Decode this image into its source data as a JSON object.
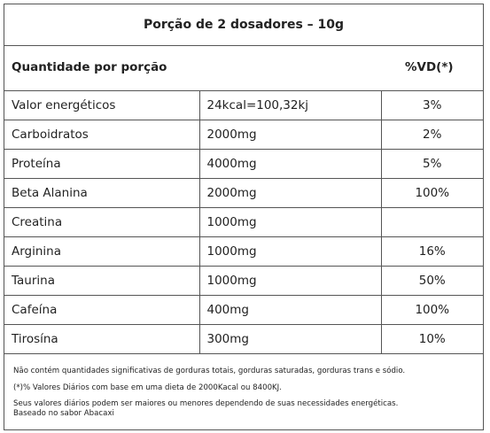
{
  "title": "Porção de 2 dosadores – 10g",
  "header": {
    "label": "Quantidade por porção",
    "vd": "%VD(*)"
  },
  "table": {
    "rows": [
      [
        "Valor energéticos",
        "24kcal=100,32kj",
        "3%"
      ],
      [
        "Carboidratos",
        "2000mg",
        "2%"
      ],
      [
        "Proteína",
        "4000mg",
        "5%"
      ],
      [
        "Beta Alanina",
        "2000mg",
        "100%"
      ],
      [
        "Creatina",
        "1000mg",
        null
      ],
      [
        "Arginina",
        "1000mg",
        "16%"
      ],
      [
        "Taurina",
        "1000mg",
        "50%"
      ],
      [
        "Cafeína",
        "400mg",
        "100%"
      ],
      [
        "Tirosína",
        "300mg",
        "10%"
      ]
    ]
  },
  "notes": [
    "Não contém quantidades significativas de gorduras totais, gorduras saturadas, gorduras trans e sódio.",
    "(*)% Valores Diários com base em uma dieta de 2000Kacal ou 8400KJ.",
    "Seus valores diários podem ser maiores ou menores dependendo de suas necessidades energéticas.",
    "Baseado no sabor Abacaxi"
  ]
}
